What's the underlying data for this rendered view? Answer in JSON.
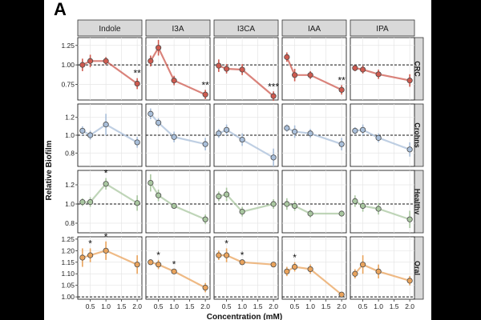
{
  "panel_letter": "A",
  "chart_data": {
    "type": "faceted-line",
    "ylabel": "Relative Biofilm",
    "xlabel": "Concentration (mM)",
    "x": [
      0.25,
      0.5,
      1.0,
      2.0
    ],
    "x_tick_labels": [
      "0.5",
      "1.0",
      "1.5",
      "2.0"
    ],
    "x_tick_values": [
      0.5,
      1.0,
      1.5,
      2.0
    ],
    "baseline": 1.0,
    "columns": [
      "Indole",
      "I3A",
      "I3CA",
      "IAA",
      "IPA"
    ],
    "rows": [
      {
        "name": "CRC",
        "color": "#ce5a4f",
        "ylim": [
          0.55,
          1.35
        ],
        "y_ticks": [
          0.75,
          1.0,
          1.25
        ],
        "y_tick_labels": [
          "0.75",
          "1.00",
          "1.25"
        ],
        "panels": [
          {
            "values": [
              1.0,
              1.05,
              1.05,
              0.76
            ],
            "errors": [
              0.08,
              0.08,
              0.05,
              0.07
            ],
            "stars": [
              "",
              "",
              "",
              "**"
            ]
          },
          {
            "values": [
              1.05,
              1.22,
              0.8,
              0.62
            ],
            "errors": [
              0.07,
              0.1,
              0.06,
              0.06
            ],
            "stars": [
              "",
              "",
              "",
              "**"
            ]
          },
          {
            "values": [
              0.99,
              0.95,
              0.94,
              0.6
            ],
            "errors": [
              0.08,
              0.06,
              0.07,
              0.06
            ],
            "stars": [
              "",
              "",
              "",
              "***"
            ]
          },
          {
            "values": [
              1.1,
              0.87,
              0.87,
              0.68
            ],
            "errors": [
              0.06,
              0.08,
              0.05,
              0.06
            ],
            "stars": [
              "",
              "",
              "",
              "**"
            ]
          },
          {
            "values": [
              0.96,
              0.94,
              0.88,
              0.8
            ],
            "errors": [
              0.04,
              0.05,
              0.06,
              0.08
            ],
            "stars": [
              "",
              "",
              "",
              ""
            ]
          }
        ]
      },
      {
        "name": "Crohns",
        "color": "#a9bfda",
        "ylim": [
          0.65,
          1.35
        ],
        "y_ticks": [
          0.8,
          1.0,
          1.2
        ],
        "y_tick_labels": [
          "0.8",
          "1.0",
          "1.2"
        ],
        "panels": [
          {
            "values": [
              1.05,
              1.0,
              1.12,
              0.92
            ],
            "errors": [
              0.05,
              0.05,
              0.12,
              0.06
            ],
            "stars": [
              "",
              "",
              "",
              ""
            ]
          },
          {
            "values": [
              1.24,
              1.14,
              0.98,
              0.9
            ],
            "errors": [
              0.06,
              0.05,
              0.06,
              0.07
            ],
            "stars": [
              "",
              "",
              "",
              ""
            ]
          },
          {
            "values": [
              1.02,
              1.06,
              0.95,
              0.75
            ],
            "errors": [
              0.05,
              0.06,
              0.07,
              0.1
            ],
            "stars": [
              "",
              "",
              "",
              ""
            ]
          },
          {
            "values": [
              1.08,
              1.04,
              1.02,
              0.9
            ],
            "errors": [
              0.04,
              0.07,
              0.05,
              0.07
            ],
            "stars": [
              "",
              "",
              "",
              ""
            ]
          },
          {
            "values": [
              1.05,
              1.06,
              0.97,
              0.84
            ],
            "errors": [
              0.04,
              0.06,
              0.05,
              0.08
            ],
            "stars": [
              "",
              "",
              "",
              ""
            ]
          }
        ]
      },
      {
        "name": "Healthy",
        "color": "#a9c7a0",
        "ylim": [
          0.7,
          1.35
        ],
        "y_ticks": [
          0.8,
          1.0,
          1.2
        ],
        "y_tick_labels": [
          "0.8",
          "1.0",
          "1.2"
        ],
        "panels": [
          {
            "values": [
              1.02,
              1.02,
              1.21,
              1.01
            ],
            "errors": [
              0.04,
              0.05,
              0.06,
              0.08
            ],
            "stars": [
              "",
              "",
              "*",
              ""
            ]
          },
          {
            "values": [
              1.22,
              1.09,
              0.98,
              0.84
            ],
            "errors": [
              0.09,
              0.06,
              0.02,
              0.05
            ],
            "stars": [
              "",
              "",
              "",
              ""
            ]
          },
          {
            "values": [
              1.08,
              1.1,
              0.92,
              1.0
            ],
            "errors": [
              0.05,
              0.07,
              0.05,
              0.05
            ],
            "stars": [
              "",
              "",
              "",
              ""
            ]
          },
          {
            "values": [
              1.0,
              0.98,
              0.9,
              0.9
            ],
            "errors": [
              0.06,
              0.05,
              0.04,
              0.03
            ],
            "stars": [
              "",
              "",
              "",
              ""
            ]
          },
          {
            "values": [
              1.03,
              0.98,
              0.95,
              0.84
            ],
            "errors": [
              0.06,
              0.06,
              0.06,
              0.09
            ],
            "stars": [
              "",
              "",
              "",
              ""
            ]
          }
        ]
      },
      {
        "name": "Oral",
        "color": "#e9a35c",
        "ylim": [
          0.99,
          1.26
        ],
        "y_ticks": [
          1.0,
          1.05,
          1.1,
          1.15,
          1.2,
          1.25
        ],
        "y_tick_labels": [
          "1.00",
          "1.05",
          "1.10",
          "1.15",
          "1.20",
          "1.25"
        ],
        "panels": [
          {
            "values": [
              1.17,
              1.18,
              1.2,
              1.14
            ],
            "errors": [
              0.04,
              0.03,
              0.04,
              0.04
            ],
            "stars": [
              "",
              "*",
              "*",
              ""
            ]
          },
          {
            "values": [
              1.15,
              1.14,
              1.11,
              1.04
            ],
            "errors": [
              0.01,
              0.02,
              0.01,
              0.02
            ],
            "stars": [
              "",
              "*",
              "*",
              ""
            ]
          },
          {
            "values": [
              1.18,
              1.18,
              1.15,
              1.14
            ],
            "errors": [
              0.02,
              0.03,
              0.01,
              0.01
            ],
            "stars": [
              "",
              "*",
              "*",
              ""
            ]
          },
          {
            "values": [
              1.11,
              1.13,
              1.12,
              1.01
            ],
            "errors": [
              0.02,
              0.02,
              0.02,
              0.01
            ],
            "stars": [
              "",
              "*",
              "",
              ""
            ]
          },
          {
            "values": [
              1.1,
              1.14,
              1.11,
              1.07
            ],
            "errors": [
              0.02,
              0.04,
              0.03,
              0.02
            ],
            "stars": [
              "",
              "",
              "",
              ""
            ]
          }
        ]
      }
    ]
  }
}
